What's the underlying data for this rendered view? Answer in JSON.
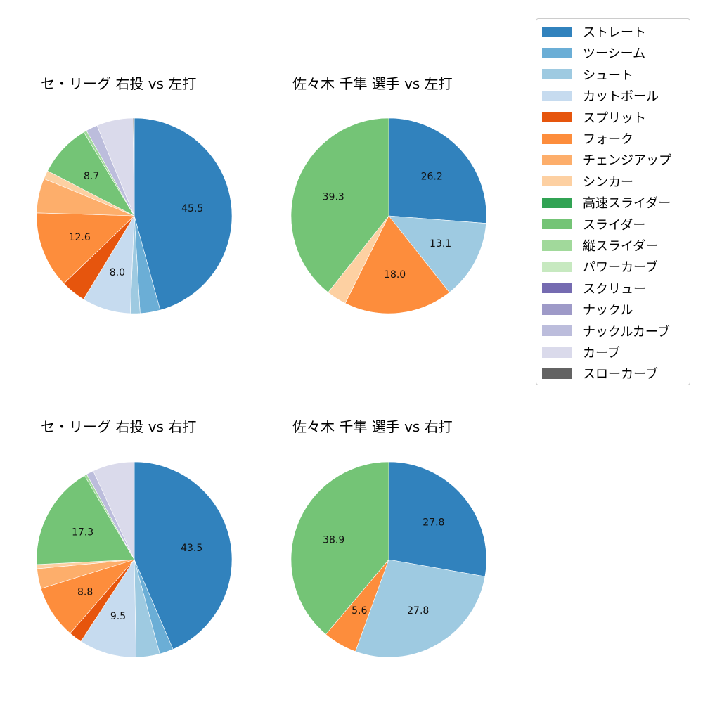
{
  "legend": {
    "items": [
      {
        "label": "ストレート",
        "color": "#3182bd"
      },
      {
        "label": "ツーシーム",
        "color": "#6baed6"
      },
      {
        "label": "シュート",
        "color": "#9ecae1"
      },
      {
        "label": "カットボール",
        "color": "#c6dbef"
      },
      {
        "label": "スプリット",
        "color": "#e6550d"
      },
      {
        "label": "フォーク",
        "color": "#fd8d3c"
      },
      {
        "label": "チェンジアップ",
        "color": "#fdae6b"
      },
      {
        "label": "シンカー",
        "color": "#fdd0a2"
      },
      {
        "label": "高速スライダー",
        "color": "#31a354"
      },
      {
        "label": "スライダー",
        "color": "#74c476"
      },
      {
        "label": "縦スライダー",
        "color": "#a1d99b"
      },
      {
        "label": "パワーカーブ",
        "color": "#c7e9c0"
      },
      {
        "label": "スクリュー",
        "color": "#756bb1"
      },
      {
        "label": "ナックル",
        "color": "#9e9ac8"
      },
      {
        "label": "ナックルカーブ",
        "color": "#bcbddc"
      },
      {
        "label": "カーブ",
        "color": "#dadaeb"
      },
      {
        "label": "スローカーブ",
        "color": "#636363"
      }
    ]
  },
  "charts": [
    {
      "title": "セ・リーグ 右投 vs 左打"
    },
    {
      "title": "佐々木 千隼 選手 vs 左打"
    },
    {
      "title": "セ・リーグ 右投 vs 右打"
    },
    {
      "title": "佐々木 千隼 選手 vs 右打"
    }
  ],
  "chart_data": [
    {
      "type": "pie",
      "title": "セ・リーグ 右投 vs 左打",
      "start_angle": 90,
      "direction": "clockwise",
      "label_threshold": 7.5,
      "categories": [
        "ストレート",
        "ツーシーム",
        "シュート",
        "カットボール",
        "スプリット",
        "フォーク",
        "チェンジアップ",
        "シンカー",
        "スライダー",
        "縦スライダー",
        "ナックルカーブ",
        "カーブ",
        "スローカーブ"
      ],
      "values": [
        45.5,
        3.3,
        1.6,
        8.0,
        4.1,
        12.6,
        5.7,
        1.4,
        8.7,
        0.5,
        1.9,
        6.0,
        0.2
      ],
      "colors": [
        "#3182bd",
        "#6baed6",
        "#9ecae1",
        "#c6dbef",
        "#e6550d",
        "#fd8d3c",
        "#fdae6b",
        "#fdd0a2",
        "#74c476",
        "#a1d99b",
        "#bcbddc",
        "#dadaeb",
        "#636363"
      ],
      "labels": [
        "45.5",
        "",
        "",
        "8.0",
        "",
        "12.6",
        "",
        "",
        "8.7",
        "",
        "",
        "",
        ""
      ]
    },
    {
      "type": "pie",
      "title": "佐々木 千隼 選手 vs 左打",
      "start_angle": 90,
      "direction": "clockwise",
      "label_threshold": 7.5,
      "categories": [
        "ストレート",
        "シュート",
        "フォーク",
        "シンカー",
        "スライダー"
      ],
      "values": [
        26.2,
        13.1,
        18.0,
        3.3,
        39.3
      ],
      "colors": [
        "#3182bd",
        "#9ecae1",
        "#fd8d3c",
        "#fdd0a2",
        "#74c476"
      ],
      "labels": [
        "26.2",
        "13.1",
        "18.0",
        "",
        "39.3"
      ]
    },
    {
      "type": "pie",
      "title": "セ・リーグ 右投 vs 右打",
      "start_angle": 90,
      "direction": "clockwise",
      "label_threshold": 7.5,
      "categories": [
        "ストレート",
        "ツーシーム",
        "シュート",
        "カットボール",
        "スプリット",
        "フォーク",
        "チェンジアップ",
        "シンカー",
        "スライダー",
        "縦スライダー",
        "ナックルカーブ",
        "カーブ"
      ],
      "values": [
        43.5,
        2.3,
        3.9,
        9.5,
        2.2,
        8.8,
        3.3,
        0.7,
        17.3,
        0.4,
        1.2,
        6.9
      ],
      "colors": [
        "#3182bd",
        "#6baed6",
        "#9ecae1",
        "#c6dbef",
        "#e6550d",
        "#fd8d3c",
        "#fdae6b",
        "#fdd0a2",
        "#74c476",
        "#a1d99b",
        "#bcbddc",
        "#dadaeb"
      ],
      "labels": [
        "43.5",
        "",
        "",
        "9.5",
        "",
        "8.8",
        "",
        "",
        "17.3",
        "",
        "",
        ""
      ]
    },
    {
      "type": "pie",
      "title": "佐々木 千隼 選手 vs 右打",
      "start_angle": 90,
      "direction": "clockwise",
      "label_threshold": 5,
      "categories": [
        "ストレート",
        "シュート",
        "フォーク",
        "スライダー"
      ],
      "values": [
        27.8,
        27.8,
        5.6,
        38.9
      ],
      "colors": [
        "#3182bd",
        "#9ecae1",
        "#fd8d3c",
        "#74c476"
      ],
      "labels": [
        "27.8",
        "27.8",
        "5.6",
        "38.9"
      ]
    }
  ]
}
